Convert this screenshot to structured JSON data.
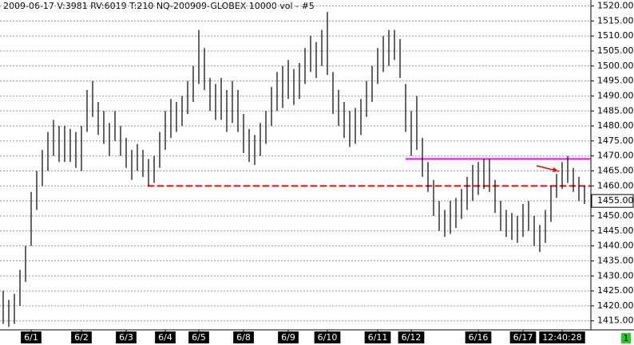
{
  "chart_data": {
    "type": "range-bar",
    "title": "2009-06-17  V:3981  RV:6019  T:210  NQ-200909-GLOBEX  10000 vol - #5",
    "categories": [
      null,
      null,
      null,
      null,
      null,
      "6/1",
      null,
      null,
      null,
      null,
      null,
      null,
      null,
      null,
      "6/2",
      null,
      null,
      null,
      null,
      null,
      null,
      null,
      "6/3",
      null,
      null,
      null,
      null,
      null,
      null,
      "6/4",
      null,
      null,
      null,
      null,
      null,
      "6/5",
      null,
      null,
      null,
      null,
      null,
      null,
      null,
      "6/8",
      null,
      null,
      null,
      null,
      null,
      null,
      null,
      "6/9",
      null,
      null,
      null,
      null,
      null,
      null,
      "6/10",
      null,
      null,
      null,
      null,
      null,
      null,
      null,
      null,
      "6/11",
      null,
      null,
      null,
      null,
      null,
      "6/12",
      null,
      null,
      null,
      null,
      null,
      null,
      null,
      null,
      null,
      null,
      null,
      "6/16",
      null,
      null,
      null,
      null,
      null,
      null,
      null,
      "6/17",
      null,
      null,
      null,
      null,
      null,
      null,
      "12:40:28",
      null,
      null,
      null,
      null
    ],
    "high": [
      1425,
      1422,
      1424,
      1432,
      1440,
      1458,
      1465,
      1472,
      1478,
      1482,
      1480,
      1480,
      1479,
      1478,
      1480,
      1492,
      1495,
      1488,
      1485,
      1481,
      1485,
      1480,
      1476,
      1472,
      1474,
      1472,
      1469,
      1470,
      1478,
      1485,
      1489,
      1488,
      1490,
      1495,
      1500,
      1512,
      1506,
      1496,
      1494,
      1496,
      1492,
      1495,
      1492,
      1484,
      1479,
      1477,
      1481,
      1485,
      1493,
      1498,
      1500,
      1502,
      1499,
      1501,
      1506,
      1510,
      1508,
      1512,
      1518,
      1498,
      1492,
      1488,
      1485,
      1486,
      1489,
      1495,
      1500,
      1506,
      1510,
      1512,
      1512,
      1509,
      1494,
      1485,
      1490,
      1476,
      1468,
      1462,
      1455,
      1452,
      1455,
      1456,
      1459,
      1463,
      1467,
      1468,
      1469,
      1469,
      1462,
      1455,
      1452,
      1451,
      1450,
      1454,
      1455,
      1450,
      1447,
      1452,
      1460,
      1464,
      1468,
      1470,
      1466,
      1463,
      1460
    ],
    "low": [
      1414,
      1413,
      1414,
      1420,
      1428,
      1440,
      1452,
      1460,
      1465,
      1470,
      1468,
      1468,
      1468,
      1466,
      1465,
      1478,
      1483,
      1477,
      1474,
      1470,
      1475,
      1470,
      1466,
      1462,
      1465,
      1463,
      1460,
      1461,
      1466,
      1472,
      1476,
      1478,
      1480,
      1484,
      1488,
      1494,
      1492,
      1485,
      1482,
      1482,
      1478,
      1481,
      1478,
      1471,
      1468,
      1467,
      1470,
      1474,
      1480,
      1485,
      1486,
      1489,
      1487,
      1489,
      1494,
      1498,
      1496,
      1500,
      1497,
      1484,
      1480,
      1476,
      1473,
      1474,
      1477,
      1483,
      1488,
      1494,
      1498,
      1500,
      1502,
      1496,
      1478,
      1470,
      1472,
      1463,
      1458,
      1450,
      1445,
      1443,
      1444,
      1446,
      1449,
      1452,
      1455,
      1457,
      1459,
      1458,
      1451,
      1445,
      1443,
      1442,
      1441,
      1443,
      1445,
      1440,
      1438,
      1441,
      1448,
      1456,
      1459,
      1461,
      1458,
      1455,
      1454
    ],
    "color": "#000000",
    "ylim": [
      1412,
      1522
    ],
    "yticks": [
      {
        "value": 1415,
        "label": "1415.00"
      },
      {
        "value": 1420,
        "label": "1420.00"
      },
      {
        "value": 1425,
        "label": "1425.00"
      },
      {
        "value": 1430,
        "label": "1430.00"
      },
      {
        "value": 1435,
        "label": "1435.00"
      },
      {
        "value": 1440,
        "label": "1440.00"
      },
      {
        "value": 1445,
        "label": "1445.00"
      },
      {
        "value": 1450,
        "label": "1450.00"
      },
      {
        "value": 1455,
        "label": "1455.00"
      },
      {
        "value": 1460,
        "label": "1460.00"
      },
      {
        "value": 1465,
        "label": "1465.00"
      },
      {
        "value": 1470,
        "label": "1470.00"
      },
      {
        "value": 1475,
        "label": "1475.00"
      },
      {
        "value": 1480,
        "label": "1480.00"
      },
      {
        "value": 1485,
        "label": "1485.00"
      },
      {
        "value": 1490,
        "label": "1490.00"
      },
      {
        "value": 1495,
        "label": "1495.00"
      },
      {
        "value": 1500,
        "label": "1500.00"
      },
      {
        "value": 1505,
        "label": "1505.00"
      },
      {
        "value": 1510,
        "label": "1510.00"
      },
      {
        "value": 1515,
        "label": "1515.00"
      },
      {
        "value": 1520,
        "label": "1520.00"
      }
    ],
    "grid": true,
    "lines": [
      {
        "value": 1469,
        "color": "#ff00ff"
      },
      {
        "value": 1460,
        "color": "#ff0000",
        "dashed": true
      }
    ],
    "last_price": {
      "value": 1455,
      "label": "1455.00"
    },
    "status": "1"
  }
}
